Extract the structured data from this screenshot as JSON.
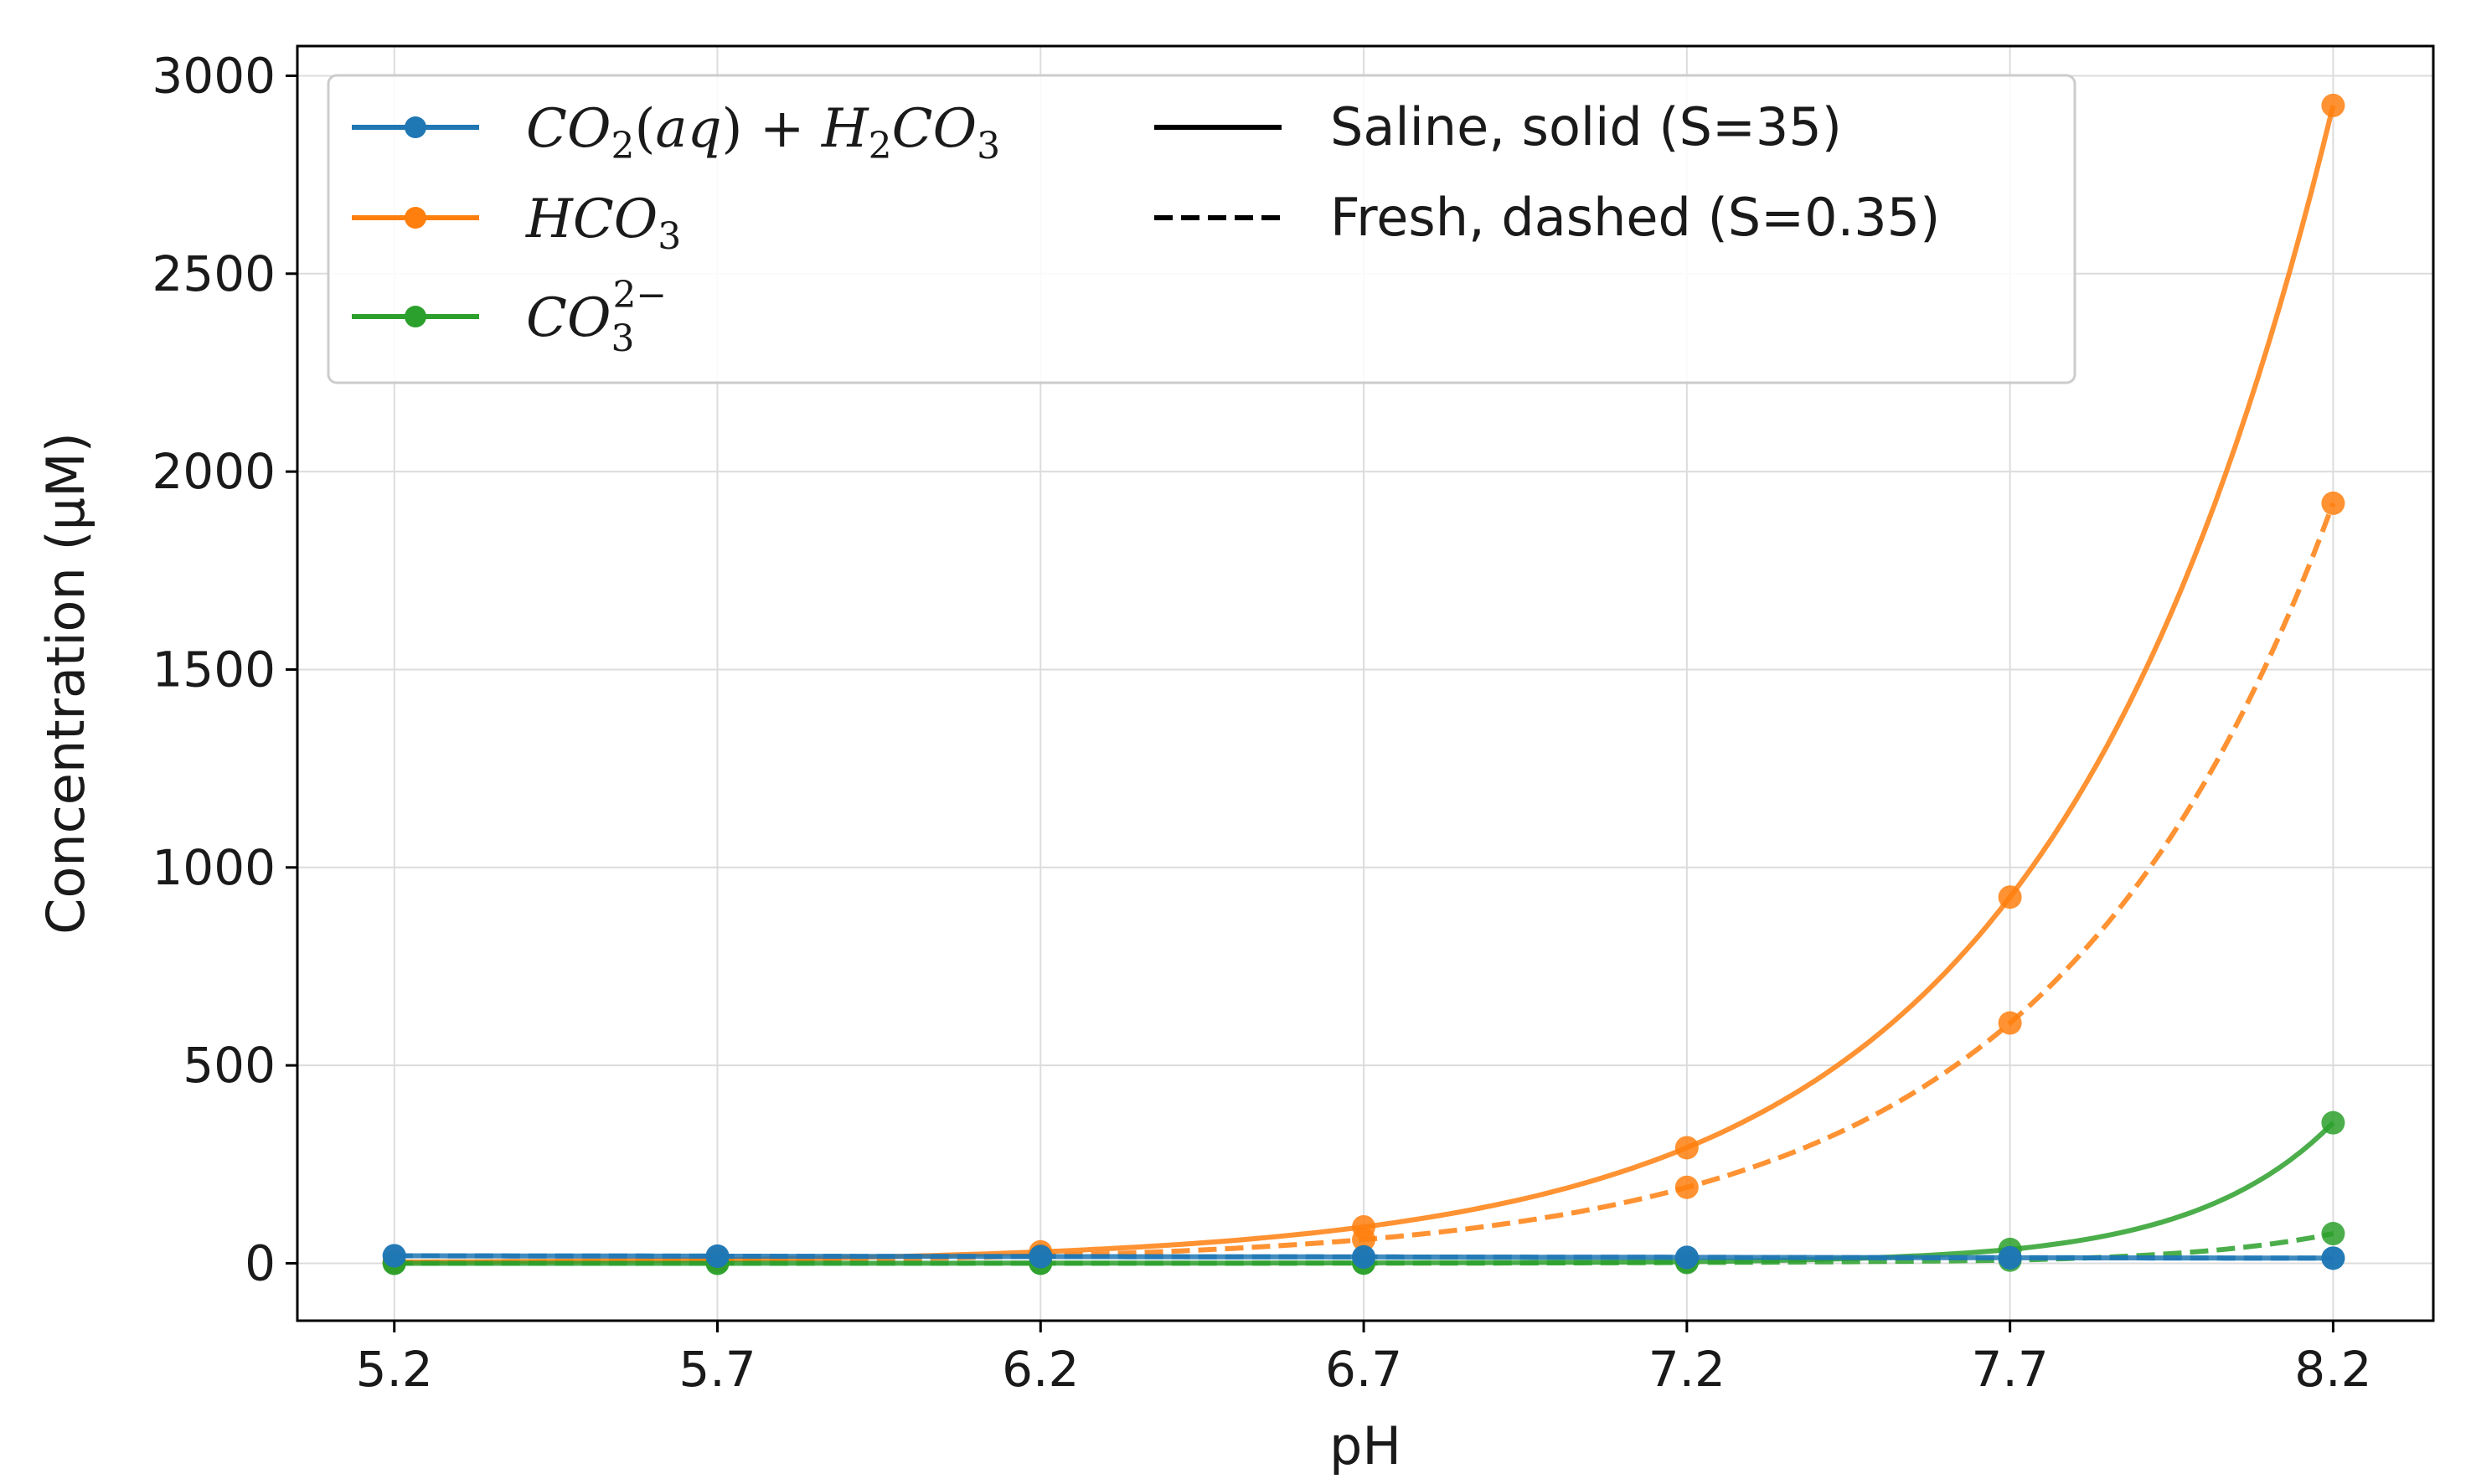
{
  "chart_data": {
    "type": "line",
    "title": "",
    "xlabel": "pH",
    "ylabel": "Concentration (μM)",
    "xlim": [
      5.05,
      8.355
    ],
    "ylim": [
      -145,
      3075
    ],
    "x_ticks": [
      5.2,
      5.7,
      6.2,
      6.7,
      7.2,
      7.7,
      8.2
    ],
    "y_ticks": [
      0,
      500,
      1000,
      1500,
      2000,
      2500,
      3000
    ],
    "grid": true,
    "legend_position": "top-left",
    "series": [
      {
        "name": "CO2(aq) + H2CO3",
        "species": "co2",
        "condition": "saline",
        "color": "#1f77b4",
        "dash": "solid",
        "x": [
          5.2,
          5.7,
          6.2,
          6.7,
          7.2,
          7.7,
          8.2
        ],
        "y": [
          19,
          18,
          17,
          16,
          15,
          14,
          13
        ]
      },
      {
        "name": "HCO3",
        "species": "hco3",
        "condition": "saline",
        "color": "#ff7f0e",
        "dash": "solid",
        "x": [
          5.2,
          5.7,
          6.2,
          6.7,
          7.2,
          7.7,
          8.2
        ],
        "y": [
          3,
          9,
          29,
          92,
          292,
          925,
          2925
        ]
      },
      {
        "name": "CO3 2-",
        "species": "co3",
        "condition": "saline",
        "color": "#2ca02c",
        "dash": "solid",
        "x": [
          5.2,
          5.7,
          6.2,
          6.7,
          7.2,
          7.7,
          8.2
        ],
        "y": [
          0,
          0,
          0.3,
          1,
          4,
          35,
          355
        ]
      },
      {
        "name": "CO2(aq) + H2CO3",
        "species": "co2",
        "condition": "fresh",
        "color": "#1f77b4",
        "dash": "dashed",
        "x": [
          5.2,
          5.7,
          6.2,
          6.7,
          7.2,
          7.7,
          8.2
        ],
        "y": [
          19,
          18,
          17,
          16,
          15,
          14,
          13
        ]
      },
      {
        "name": "HCO3",
        "species": "hco3",
        "condition": "fresh",
        "color": "#ff7f0e",
        "dash": "dashed",
        "x": [
          5.2,
          5.7,
          6.2,
          6.7,
          7.2,
          7.7,
          8.2
        ],
        "y": [
          2,
          6,
          19,
          60,
          192,
          607,
          1920
        ]
      },
      {
        "name": "CO3 2-",
        "species": "co3",
        "condition": "fresh",
        "color": "#2ca02c",
        "dash": "dashed",
        "x": [
          5.2,
          5.7,
          6.2,
          6.7,
          7.2,
          7.7,
          8.2
        ],
        "y": [
          0,
          0,
          0.1,
          0.3,
          2,
          8,
          75
        ]
      }
    ],
    "legend": {
      "species": [
        {
          "key": "co2",
          "color": "#1f77b4"
        },
        {
          "key": "hco3",
          "color": "#ff7f0e"
        },
        {
          "key": "co3",
          "color": "#2ca02c"
        }
      ],
      "styles": [
        {
          "label": "Saline, solid (S=35)",
          "dash": "solid"
        },
        {
          "label": "Fresh, dashed (S=0.35)",
          "dash": "dashed"
        }
      ]
    }
  }
}
